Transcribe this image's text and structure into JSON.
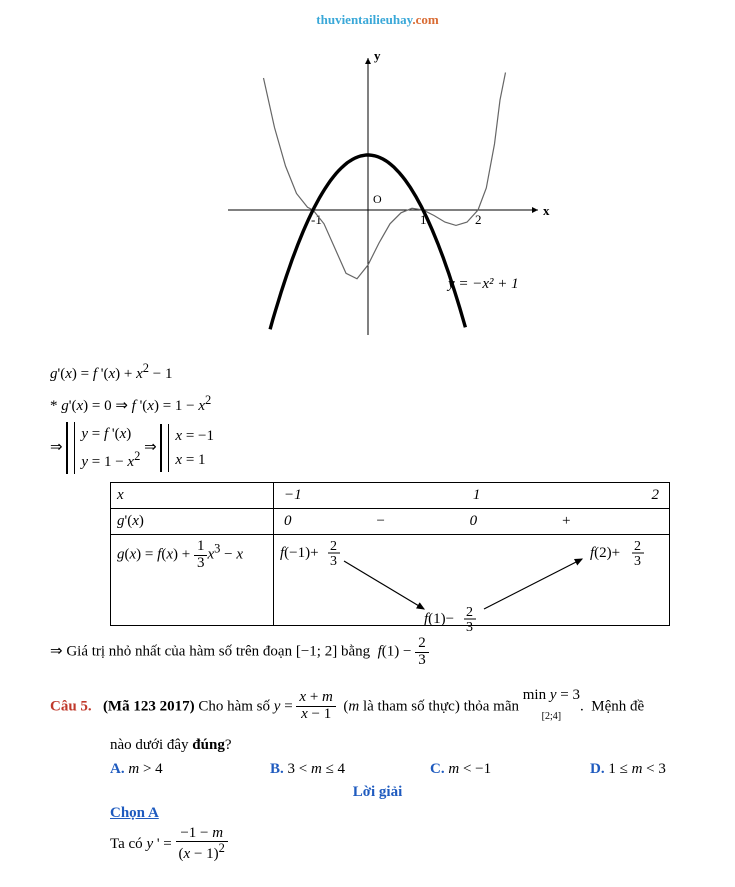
{
  "header": {
    "part1": "thuvientailieuhay",
    "part2": ".com"
  },
  "graph": {
    "type": "function-plot",
    "xlim": [
      -2.2,
      2.6
    ],
    "ylim": [
      -2.4,
      2.6
    ],
    "axis_color": "#000000",
    "axis_width": 1,
    "x_ticks": [
      -1,
      1,
      2
    ],
    "origin_label": "O",
    "x_axis_label": "x",
    "y_axis_label": "y",
    "curve_equation_label": "y = −x² + 1",
    "curves": [
      {
        "name": "thick_parabola",
        "kind": "parabola",
        "formula": "y = -x^2 + 1",
        "color": "#000000",
        "width": 3.4,
        "sample_points_x": [
          -1.7,
          -1.5,
          -1.2,
          -1,
          -0.6,
          0,
          0.6,
          1,
          1.2,
          1.5,
          1.7
        ],
        "sample_points_y": [
          -1.89,
          -1.25,
          -0.44,
          0,
          0.64,
          1,
          0.64,
          0,
          -0.44,
          -1.25,
          -1.89
        ]
      },
      {
        "name": "thin_fprime",
        "kind": "derivative-like",
        "color": "#666666",
        "width": 1.2,
        "points": [
          [
            -1.9,
            2.4
          ],
          [
            -1.7,
            1.5
          ],
          [
            -1.5,
            0.8
          ],
          [
            -1.3,
            0.3
          ],
          [
            -1.1,
            0.05
          ],
          [
            -1.0,
            0.0
          ],
          [
            -0.8,
            -0.25
          ],
          [
            -0.6,
            -0.7
          ],
          [
            -0.4,
            -1.15
          ],
          [
            -0.2,
            -1.25
          ],
          [
            0.0,
            -1.0
          ],
          [
            0.2,
            -0.6
          ],
          [
            0.4,
            -0.25
          ],
          [
            0.6,
            -0.05
          ],
          [
            0.8,
            0.03
          ],
          [
            1.0,
            0.0
          ],
          [
            1.2,
            -0.1
          ],
          [
            1.4,
            -0.22
          ],
          [
            1.6,
            -0.28
          ],
          [
            1.8,
            -0.22
          ],
          [
            2.0,
            0.0
          ],
          [
            2.15,
            0.4
          ],
          [
            2.3,
            1.2
          ],
          [
            2.4,
            2.0
          ],
          [
            2.5,
            2.5
          ]
        ]
      }
    ],
    "label_fontsize": 13,
    "background_color": "#ffffff"
  },
  "working": {
    "line1": "g'(x) = f '(x) + x² − 1",
    "line2": "* g'(x) = 0 ⇒ f '(x) = 1 − x²",
    "cases_from": {
      "a": "y = f '(x)",
      "b": "y = 1 − x²"
    },
    "cases_to": {
      "a": "x = −1",
      "b": "x = 1"
    }
  },
  "sign_table": {
    "type": "sign-variation-table",
    "x_header": "x",
    "gprime_header": "g'(x)",
    "g_header_expr": "g(x) = f(x) + ⅓x³ − x",
    "x_values": [
      "−1",
      "1",
      "2"
    ],
    "gprime_values": [
      "0",
      "−",
      "0",
      "+"
    ],
    "g_values": {
      "at_minus1": "f(−1) + 2/3",
      "at_1": "f(1) − 2/3",
      "at_2": "f(2) + 2/3"
    },
    "arrow_color": "#000000"
  },
  "conclusion": "⇒ Giá trị nhỏ nhất của hàm số trên đoạn [−1; 2] bằng f(1) − 2/3",
  "question5": {
    "label": "Câu 5.",
    "source": "(Mã 123 2017)",
    "prompt_pre": "Cho hàm số ",
    "func_num": "x + m",
    "func_den": "x − 1",
    "prompt_mid": " (m là tham số thực) thỏa mãn ",
    "min_expr": "min y = 3",
    "min_domain": "[2;4]",
    "prompt_post": ". Mệnh đề",
    "prompt_line2": "nào dưới đây ",
    "prompt_bold": "đúng",
    "prompt_q": "?",
    "choices": {
      "A": "m > 4",
      "B": "3 < m ≤ 4",
      "C": "m < −1",
      "D": "1 ≤ m < 3"
    },
    "solution_label": "Lời giải",
    "picked_label": "Chọn A",
    "work_line_pre": "Ta có ",
    "yprime_num": "−1 − m",
    "yprime_den": "(x − 1)²"
  }
}
